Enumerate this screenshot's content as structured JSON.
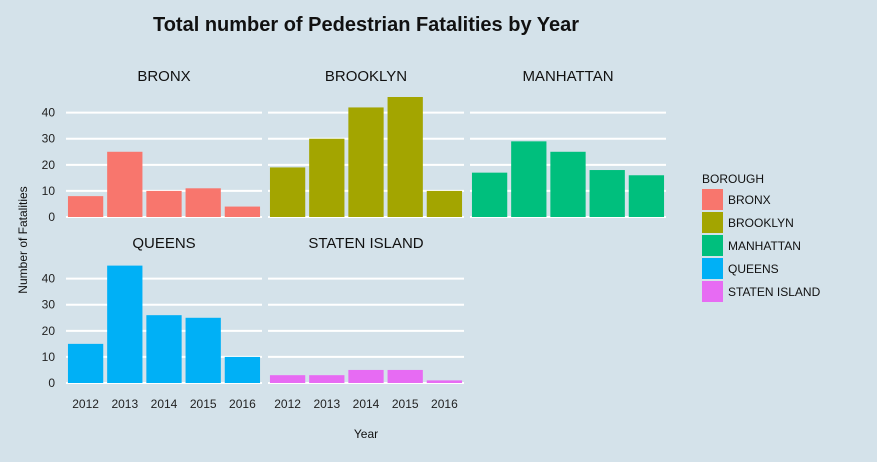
{
  "chart_data": {
    "type": "bar",
    "title": "Total number of Pedestrian Fatalities by Year",
    "xlabel": "Year",
    "ylabel": "Number of Fatalities",
    "categories": [
      "2012",
      "2013",
      "2014",
      "2015",
      "2016"
    ],
    "ylim": [
      0,
      46
    ],
    "yticks": [
      0,
      10,
      20,
      30,
      40
    ],
    "grid": true,
    "legend": {
      "title": "BOROUGH",
      "position": "right"
    },
    "series": [
      {
        "name": "BRONX",
        "color": "#f8766d",
        "values": [
          8,
          25,
          10,
          11,
          4
        ]
      },
      {
        "name": "BROOKLYN",
        "color": "#a3a500",
        "values": [
          19,
          30,
          42,
          46,
          10
        ]
      },
      {
        "name": "MANHATTAN",
        "color": "#00bf7d",
        "values": [
          17,
          29,
          25,
          18,
          16
        ]
      },
      {
        "name": "QUEENS",
        "color": "#00b0f6",
        "values": [
          15,
          45,
          26,
          25,
          10
        ]
      },
      {
        "name": "STATEN ISLAND",
        "color": "#e76bf3",
        "values": [
          3,
          3,
          5,
          5,
          1
        ]
      }
    ]
  }
}
